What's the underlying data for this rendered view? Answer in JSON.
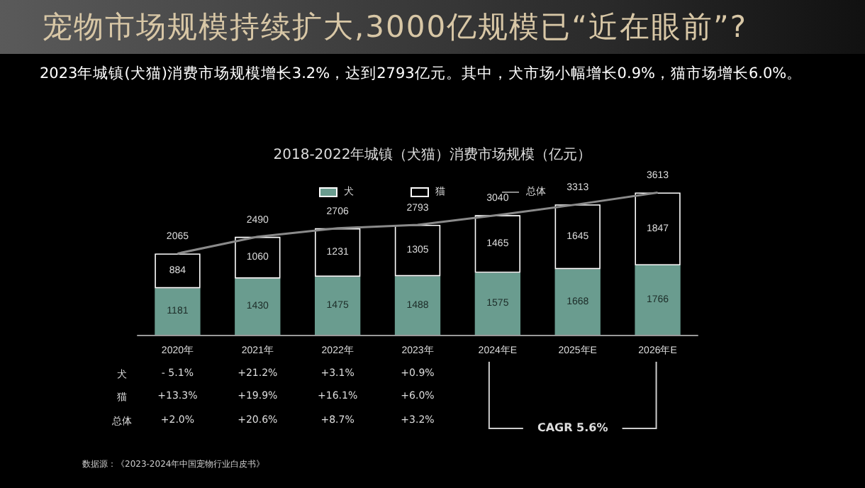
{
  "chart_data": {
    "type": "bar",
    "title": "宠物市场规模持续扩大,3000亿规模已“近在眼前”?",
    "subtitle": "2023年城镇(犬猫)消费市场规模增长3.2%，达到2793亿元。其中，犬市场小幅增长0.9%，猫市场增长6.0%。",
    "categories": [
      "2020年",
      "2021年",
      "2022年",
      "2023年",
      "2024年E",
      "2025年E",
      "2026年E"
    ],
    "stacked": true,
    "series": [
      {
        "name": "犬",
        "color": "#6a9c8f",
        "values": [
          1181,
          1430,
          1475,
          1488,
          1575,
          1668,
          1766
        ]
      },
      {
        "name": "猫",
        "color": "#000000",
        "values": [
          884,
          1060,
          1231,
          1305,
          1465,
          1645,
          1847
        ]
      },
      {
        "name": "总体",
        "type": "line",
        "color": "#8a8a8a",
        "values": [
          2065,
          2490,
          2706,
          2793,
          3040,
          3313,
          3613
        ]
      }
    ],
    "data_labels": true,
    "legend": "top",
    "marker": "none",
    "grid": false,
    "tick_labels": "x",
    "annotations": [
      "2018-2022年城镇（犬猫）消费市场规模（亿元）",
      "犬",
      "- 5.1%",
      "+21.2%",
      "+3.1%",
      "+0.9%",
      "猫",
      "+13.3%",
      "+19.9%",
      "+16.1%",
      "+6.0%",
      "总体",
      "+2.0%",
      "+20.6%",
      "+8.7%",
      "+3.2%",
      "CAGR 5.6%",
      "数据源：《2023-2024年中国宠物行业白皮书》"
    ]
  }
}
